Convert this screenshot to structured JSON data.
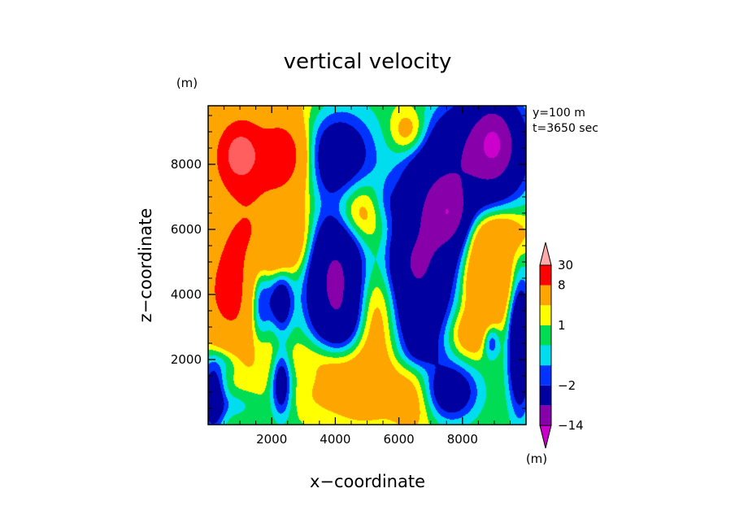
{
  "chart_data": {
    "type": "heatmap",
    "title": "vertical velocity",
    "xlabel": "x−coordinate",
    "ylabel": "z−coordinate",
    "y_unit": "(m)",
    "colorbar_unit": "(m)",
    "info_lines": [
      "y=100 m",
      "t=3650 sec"
    ],
    "xlim": [
      0,
      10000
    ],
    "ylim": [
      0,
      9800
    ],
    "x_ticks": [
      2000,
      4000,
      6000,
      8000
    ],
    "y_ticks": [
      2000,
      4000,
      6000,
      8000
    ],
    "x_tick_labels": [
      "2000",
      "4000",
      "6000",
      "8000"
    ],
    "y_tick_labels": [
      "2000",
      "4000",
      "6000",
      "8000"
    ],
    "grid": false,
    "colorbar": {
      "levels": [
        -30,
        -14,
        -8,
        -2,
        -1,
        0,
        1,
        2,
        8,
        14,
        30
      ],
      "labels": [
        "30",
        "8",
        "1",
        "−2",
        "−14"
      ],
      "label_values": [
        30,
        8,
        1,
        -2,
        -14
      ],
      "colors": [
        "#cc00cc",
        "#8800aa",
        "#0000a0",
        "#0033ff",
        "#00ddee",
        "#00dd55",
        "#ffff00",
        "#ffa500",
        "#ff0000",
        "#ff5f5f",
        "#ffaaaa"
      ]
    },
    "field": {
      "background": 0.8,
      "blobs": [
        {
          "x": 1500,
          "y": 8000,
          "sx": 1400,
          "sy": 1600,
          "a": 7
        },
        {
          "x": 1000,
          "y": 8300,
          "sx": 420,
          "sy": 620,
          "a": 11
        },
        {
          "x": 2400,
          "y": 8300,
          "sx": 420,
          "sy": 620,
          "a": 8
        },
        {
          "x": 700,
          "y": 4000,
          "sx": 650,
          "sy": 1100,
          "a": 9
        },
        {
          "x": 1200,
          "y": 5800,
          "sx": 900,
          "sy": 800,
          "a": 3
        },
        {
          "x": 2300,
          "y": 5500,
          "sx": 600,
          "sy": 600,
          "a": 3
        },
        {
          "x": 4600,
          "y": 6500,
          "sx": 600,
          "sy": 700,
          "a": 4
        },
        {
          "x": 5300,
          "y": 3300,
          "sx": 500,
          "sy": 1100,
          "a": 3
        },
        {
          "x": 4800,
          "y": 1200,
          "sx": 900,
          "sy": 800,
          "a": 3
        },
        {
          "x": 3600,
          "y": 1700,
          "sx": 700,
          "sy": 700,
          "a": 3
        },
        {
          "x": 6500,
          "y": 900,
          "sx": 500,
          "sy": 800,
          "a": 3
        },
        {
          "x": 8800,
          "y": 4500,
          "sx": 500,
          "sy": 900,
          "a": 7
        },
        {
          "x": 9200,
          "y": 5900,
          "sx": 700,
          "sy": 500,
          "a": 3
        },
        {
          "x": 8300,
          "y": 2800,
          "sx": 500,
          "sy": 500,
          "a": 3
        },
        {
          "x": 6300,
          "y": 9000,
          "sx": 400,
          "sy": 500,
          "a": 3
        },
        {
          "x": 1600,
          "y": 2300,
          "sx": 500,
          "sy": 800,
          "a": 2.5
        },
        {
          "x": 4000,
          "y": 4500,
          "sx": 600,
          "sy": 1600,
          "a": -10
        },
        {
          "x": 3900,
          "y": 8300,
          "sx": 900,
          "sy": 1000,
          "a": -6
        },
        {
          "x": 7100,
          "y": 6500,
          "sx": 750,
          "sy": 1500,
          "a": -8
        },
        {
          "x": 7600,
          "y": 6500,
          "sx": 350,
          "sy": 550,
          "a": -7
        },
        {
          "x": 6600,
          "y": 3800,
          "sx": 650,
          "sy": 1500,
          "a": -6
        },
        {
          "x": 8700,
          "y": 8400,
          "sx": 900,
          "sy": 1100,
          "a": -9
        },
        {
          "x": 9000,
          "y": 8700,
          "sx": 400,
          "sy": 700,
          "a": -8
        },
        {
          "x": 1600,
          "y": 3700,
          "sx": 300,
          "sy": 1100,
          "a": -6
        },
        {
          "x": 2300,
          "y": 3800,
          "sx": 250,
          "sy": 700,
          "a": -5
        },
        {
          "x": 2300,
          "y": 1300,
          "sx": 220,
          "sy": 700,
          "a": -5
        },
        {
          "x": 7600,
          "y": 1000,
          "sx": 600,
          "sy": 600,
          "a": -5
        },
        {
          "x": 9800,
          "y": 2500,
          "sx": 250,
          "sy": 1400,
          "a": -7
        },
        {
          "x": 8900,
          "y": 2600,
          "sx": 200,
          "sy": 400,
          "a": -4
        },
        {
          "x": 150,
          "y": 800,
          "sx": 250,
          "sy": 700,
          "a": -5
        },
        {
          "x": 500,
          "y": 2000,
          "sx": 500,
          "sy": 400,
          "a": -2
        },
        {
          "x": 6200,
          "y": 5000,
          "sx": 400,
          "sy": 600,
          "a": -2
        },
        {
          "x": 5600,
          "y": 6800,
          "sx": 350,
          "sy": 500,
          "a": -1.5
        },
        {
          "x": 3200,
          "y": 1500,
          "sx": 400,
          "sy": 400,
          "a": -1.5
        },
        {
          "x": 6700,
          "y": 2200,
          "sx": 400,
          "sy": 300,
          "a": -1.2
        },
        {
          "x": 800,
          "y": 600,
          "sx": 500,
          "sy": 300,
          "a": -1.3
        },
        {
          "x": 4300,
          "y": 3300,
          "sx": 400,
          "sy": 500,
          "a": -1
        }
      ]
    }
  }
}
